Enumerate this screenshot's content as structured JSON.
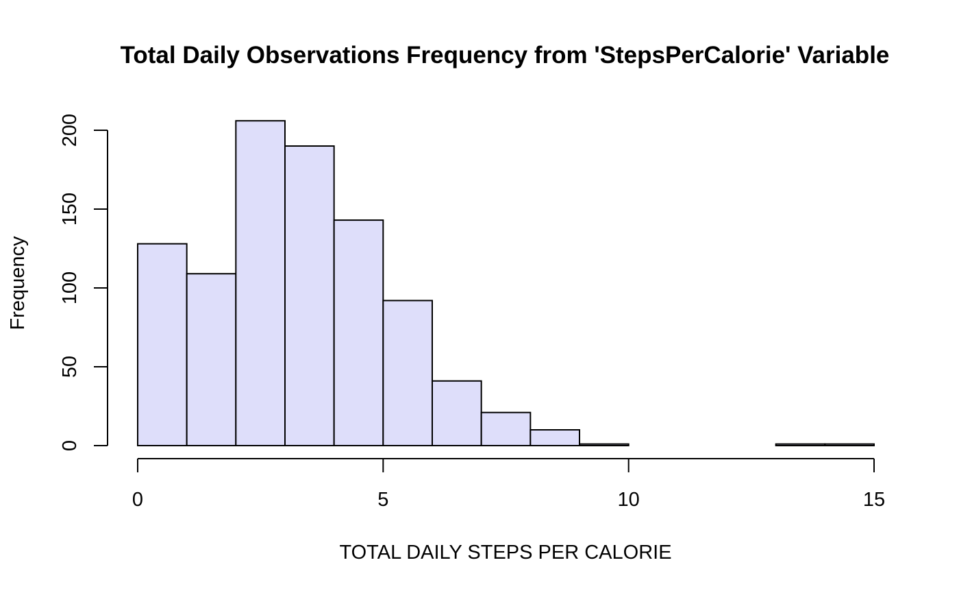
{
  "chart_data": {
    "type": "bar",
    "title": "Total Daily Observations Frequency from 'StepsPerCalorie' Variable",
    "xlabel": "TOTAL DAILY STEPS PER CALORIE",
    "ylabel": "Frequency",
    "bins": [
      {
        "x0": 0,
        "x1": 1,
        "count": 128
      },
      {
        "x0": 1,
        "x1": 2,
        "count": 109
      },
      {
        "x0": 2,
        "x1": 3,
        "count": 206
      },
      {
        "x0": 3,
        "x1": 4,
        "count": 190
      },
      {
        "x0": 4,
        "x1": 5,
        "count": 143
      },
      {
        "x0": 5,
        "x1": 6,
        "count": 92
      },
      {
        "x0": 6,
        "x1": 7,
        "count": 41
      },
      {
        "x0": 7,
        "x1": 8,
        "count": 21
      },
      {
        "x0": 8,
        "x1": 9,
        "count": 10
      },
      {
        "x0": 9,
        "x1": 10,
        "count": 1
      },
      {
        "x0": 10,
        "x1": 11,
        "count": 0
      },
      {
        "x0": 11,
        "x1": 12,
        "count": 0
      },
      {
        "x0": 12,
        "x1": 13,
        "count": 0
      },
      {
        "x0": 13,
        "x1": 14,
        "count": 1
      },
      {
        "x0": 14,
        "x1": 15,
        "count": 1
      }
    ],
    "xlim": [
      0,
      15
    ],
    "ylim": [
      0,
      206
    ],
    "xticks": [
      0,
      5,
      10,
      15
    ],
    "yticks": [
      0,
      50,
      100,
      150,
      200
    ],
    "bar_color": "#dedefa",
    "border_color": "#000000",
    "grid": false
  }
}
